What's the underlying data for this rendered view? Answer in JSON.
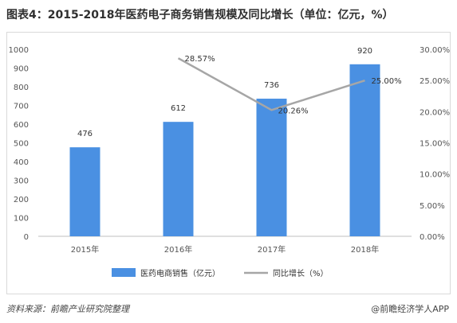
{
  "title": "图表4：2015-2018年医药电子商务销售规模及同比增长（单位：亿元，%）",
  "source": "资料来源：前瞻产业研究院整理",
  "brand": "@前瞻经济学人APP",
  "colors": {
    "bar": "#4a90e2",
    "line": "#a6a6a6"
  },
  "chart_data": {
    "type": "bar",
    "categories": [
      "2015年",
      "2016年",
      "2017年",
      "2018年"
    ],
    "series": [
      {
        "name": "医药电商销售（亿元）",
        "type": "bar",
        "axis": "left",
        "values": [
          476,
          612,
          736,
          920
        ]
      },
      {
        "name": "同比增长（%）",
        "type": "line",
        "axis": "right",
        "values": [
          null,
          28.57,
          20.26,
          25.0
        ]
      }
    ],
    "bar_labels": [
      "476",
      "612",
      "736",
      "920"
    ],
    "line_labels": [
      "",
      "28.57%",
      "20.26%",
      "25.00%"
    ],
    "y_left": {
      "ylim": [
        0,
        1000
      ],
      "ticks": [
        "0",
        "100",
        "200",
        "300",
        "400",
        "500",
        "600",
        "700",
        "800",
        "900",
        "1000"
      ]
    },
    "y_right": {
      "ylim": [
        0,
        30
      ],
      "ticks": [
        "0.00%",
        "5.00%",
        "10.00%",
        "15.00%",
        "20.00%",
        "25.00%",
        "30.00%"
      ]
    },
    "legend_position": "bottom",
    "grid": false
  }
}
